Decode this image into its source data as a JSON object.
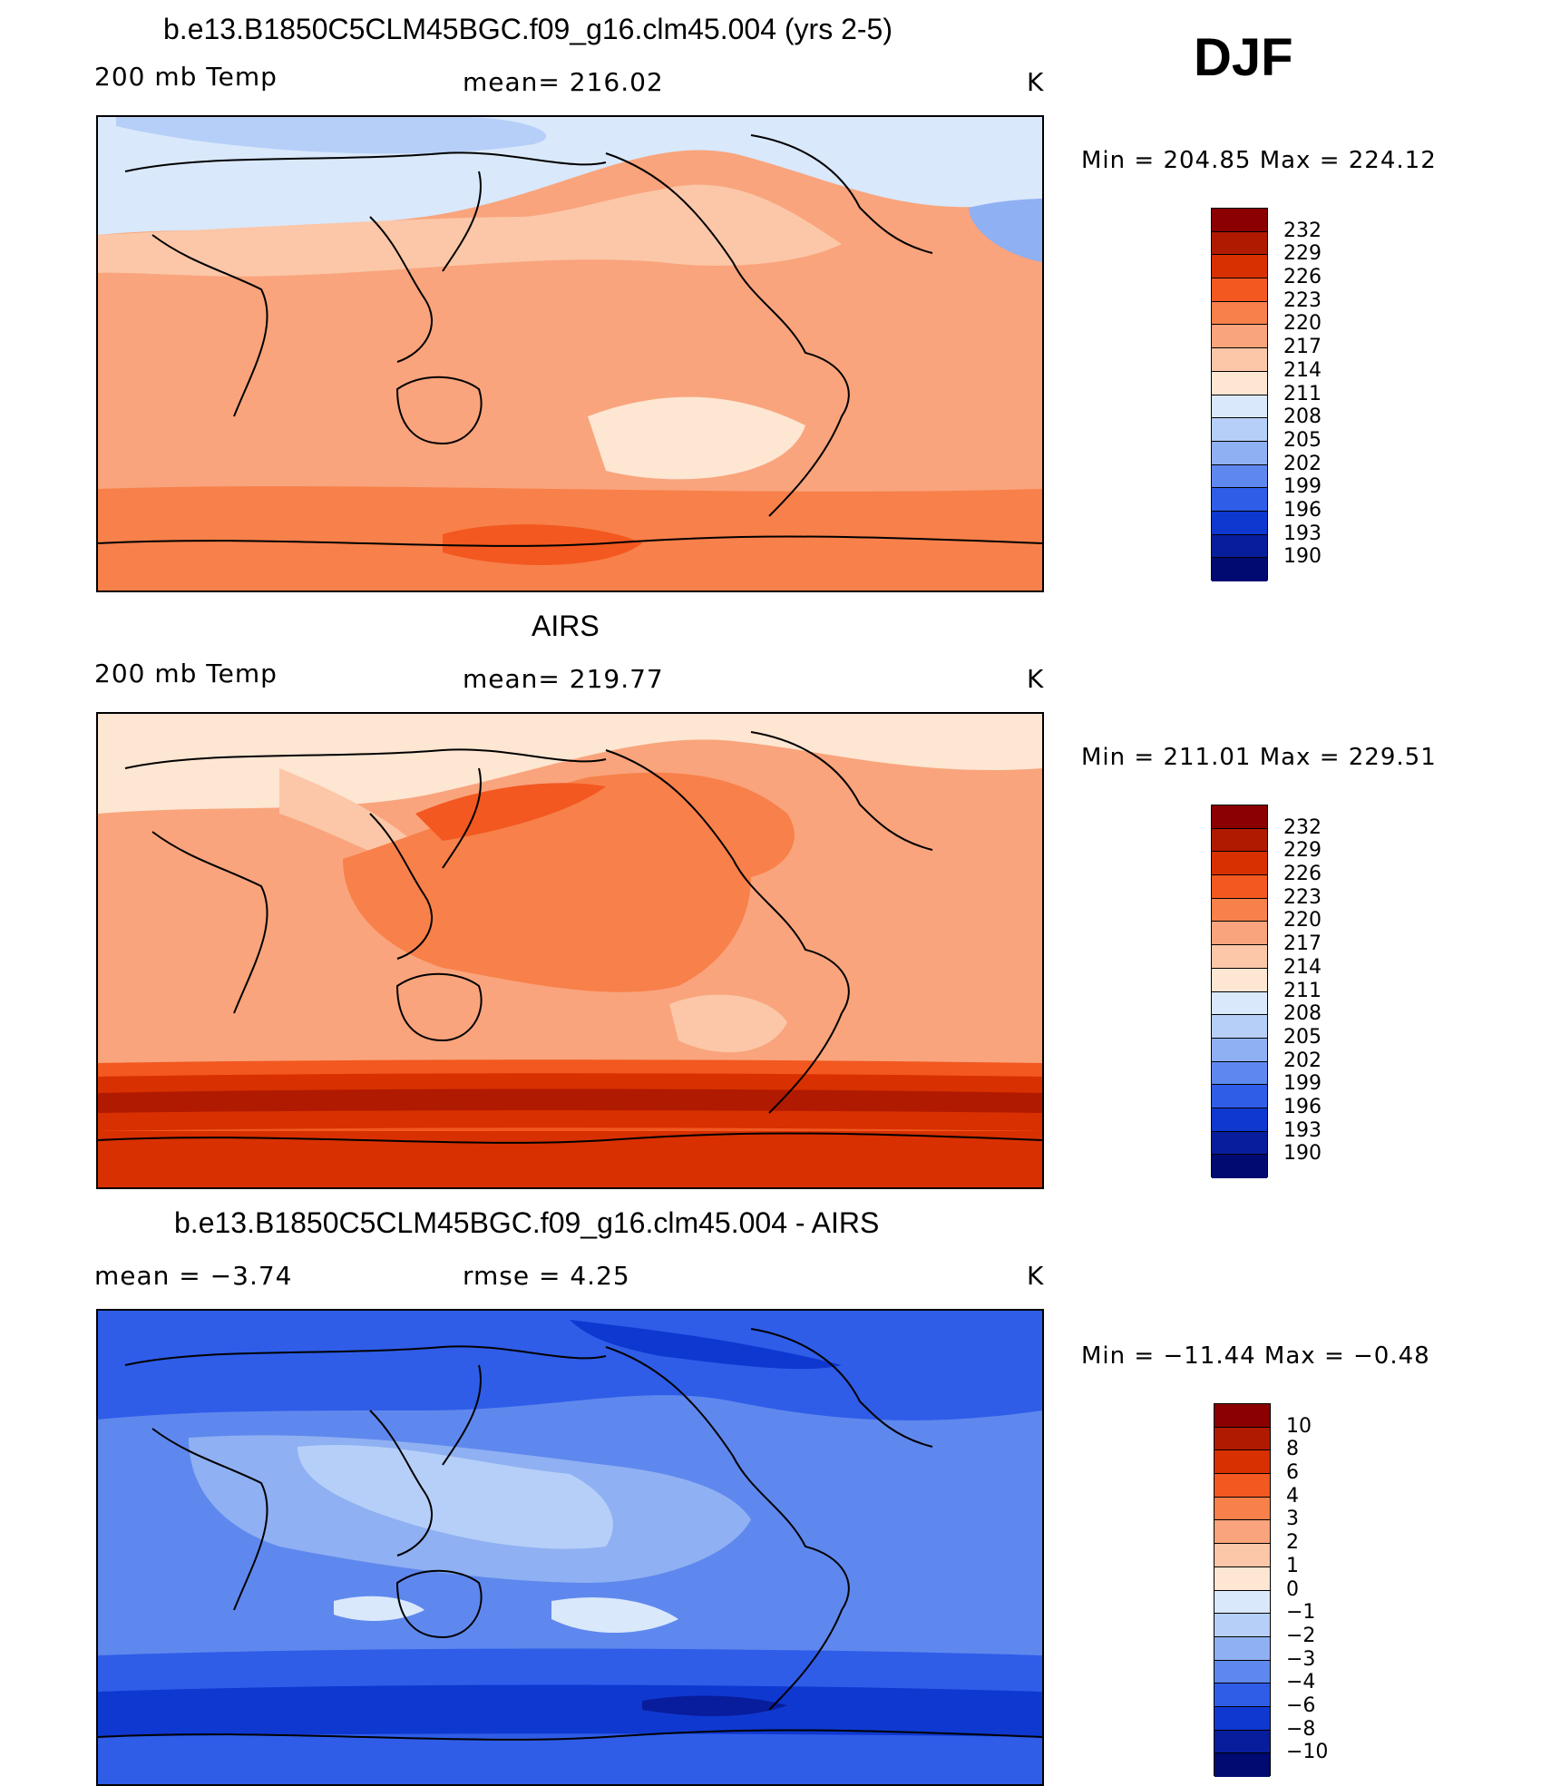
{
  "season": "DJF",
  "panels": [
    {
      "title": "b.e13.B1850C5CLM45BGC.f09_g16.clm45.004 (yrs 2-5)",
      "left": "200 mb Temp",
      "center": "mean= 216.02",
      "right": "K",
      "minmax": "Min = 204.85 Max = 224.12",
      "colorbar": {
        "labels": [
          "232",
          "229",
          "226",
          "223",
          "220",
          "217",
          "214",
          "211",
          "208",
          "205",
          "202",
          "199",
          "196",
          "193",
          "190"
        ],
        "colors": [
          "#8b0000",
          "#b01a00",
          "#d83000",
          "#f25820",
          "#f8804a",
          "#f9a47c",
          "#fbc7a8",
          "#fde6d2",
          "#d9e8fb",
          "#b6cff8",
          "#8fb0f2",
          "#5f88ee",
          "#2f5de8",
          "#0f38d0",
          "#081d9c",
          "#000a70"
        ]
      },
      "map_theme": "model"
    },
    {
      "title": "AIRS",
      "left": "200 mb Temp",
      "center": "mean= 219.77",
      "right": "K",
      "minmax": "Min = 211.01 Max = 229.51",
      "colorbar": {
        "labels": [
          "232",
          "229",
          "226",
          "223",
          "220",
          "217",
          "214",
          "211",
          "208",
          "205",
          "202",
          "199",
          "196",
          "193",
          "190"
        ],
        "colors": [
          "#8b0000",
          "#b01a00",
          "#d83000",
          "#f25820",
          "#f8804a",
          "#f9a47c",
          "#fbc7a8",
          "#fde6d2",
          "#d9e8fb",
          "#b6cff8",
          "#8fb0f2",
          "#5f88ee",
          "#2f5de8",
          "#0f38d0",
          "#081d9c",
          "#000a70"
        ]
      },
      "map_theme": "obs"
    },
    {
      "title": "b.e13.B1850C5CLM45BGC.f09_g16.clm45.004 - AIRS",
      "left": "mean =    −3.74",
      "center": "rmse =     4.25",
      "right": "K",
      "minmax": "Min = −11.44 Max =   −0.48",
      "colorbar": {
        "labels": [
          "10",
          "8",
          "6",
          "4",
          "3",
          "2",
          "1",
          "0",
          "−1",
          "−2",
          "−3",
          "−4",
          "−6",
          "−8",
          "−10"
        ],
        "colors": [
          "#8b0000",
          "#b01a00",
          "#d83000",
          "#f25820",
          "#f8804a",
          "#f9a47c",
          "#fbc7a8",
          "#fde6d2",
          "#d9e8fb",
          "#b6cff8",
          "#8fb0f2",
          "#5f88ee",
          "#2f5de8",
          "#0f38d0",
          "#081d9c",
          "#000a70"
        ]
      },
      "map_theme": "diff"
    }
  ],
  "chart_data": [
    {
      "type": "heatmap",
      "title": "b.e13.B1850C5CLM45BGC.f09_g16.clm45.004 (yrs 2-5)",
      "variable": "200 mb Temp",
      "units": "K",
      "mean": 216.02,
      "min": 204.85,
      "max": 224.12,
      "contour_levels": [
        190,
        193,
        196,
        199,
        202,
        205,
        208,
        211,
        214,
        217,
        220,
        223,
        226,
        229,
        232
      ]
    },
    {
      "type": "heatmap",
      "title": "AIRS",
      "variable": "200 mb Temp",
      "units": "K",
      "mean": 219.77,
      "min": 211.01,
      "max": 229.51,
      "contour_levels": [
        190,
        193,
        196,
        199,
        202,
        205,
        208,
        211,
        214,
        217,
        220,
        223,
        226,
        229,
        232
      ]
    },
    {
      "type": "heatmap",
      "title": "b.e13.B1850C5CLM45BGC.f09_g16.clm45.004 - AIRS",
      "units": "K",
      "mean": -3.74,
      "rmse": 4.25,
      "min": -11.44,
      "max": -0.48,
      "contour_levels": [
        -10,
        -8,
        -6,
        -4,
        -3,
        -2,
        -1,
        0,
        1,
        2,
        3,
        4,
        6,
        8,
        10
      ]
    }
  ]
}
